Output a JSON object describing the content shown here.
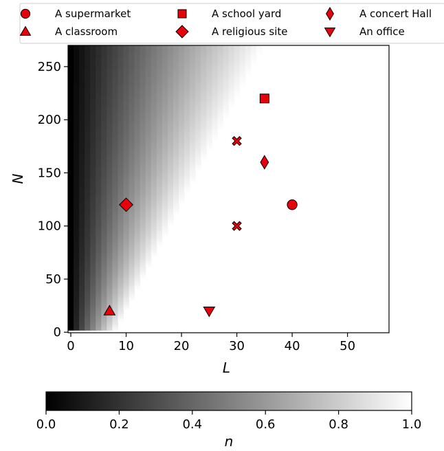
{
  "chart_data": {
    "type": "scatter",
    "xlabel": "L",
    "ylabel": "N",
    "xlim": [
      -0.5,
      57.5
    ],
    "ylim": [
      -0.5,
      270
    ],
    "xticks": [
      "0",
      "10",
      "20",
      "30",
      "40",
      "50"
    ],
    "yticks": [
      "0",
      "50",
      "100",
      "150",
      "200",
      "250"
    ],
    "background": {
      "type": "heatmap",
      "colormap": "gray",
      "description_value": "n",
      "range": [
        0.0,
        1.0
      ]
    },
    "colorbar": {
      "label": "n",
      "range": [
        0.0,
        1.0
      ],
      "ticks": [
        "0.0",
        "0.2",
        "0.4",
        "0.6",
        "0.8",
        "1.0"
      ]
    },
    "legend_position": "top",
    "marker_color": "#e8000b",
    "series": [
      {
        "name": "A supermarket",
        "marker": "circle",
        "points": [
          {
            "x": 40,
            "y": 120
          }
        ]
      },
      {
        "name": "A classroom",
        "marker": "triangle-up",
        "points": [
          {
            "x": 7,
            "y": 20
          }
        ]
      },
      {
        "name": "A school yard",
        "marker": "square",
        "points": [
          {
            "x": 35,
            "y": 220
          }
        ]
      },
      {
        "name": "A religious site",
        "marker": "diamond",
        "points": [
          {
            "x": 10,
            "y": 120
          }
        ]
      },
      {
        "name": "A concert Hall",
        "marker": "thin-diamond",
        "points": [
          {
            "x": 35,
            "y": 160
          }
        ]
      },
      {
        "name": "An office",
        "marker": "triangle-down",
        "points": [
          {
            "x": 25,
            "y": 20
          }
        ]
      },
      {
        "marker": "x",
        "points": [
          {
            "x": 30,
            "y": 180
          },
          {
            "x": 30,
            "y": 100
          }
        ]
      }
    ]
  }
}
